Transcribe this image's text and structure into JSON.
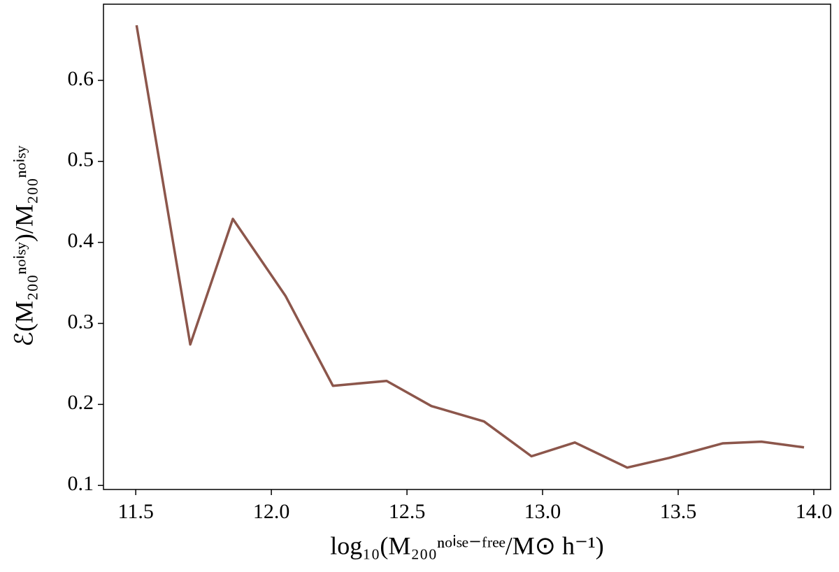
{
  "chart_data": {
    "type": "line",
    "xlabel": "log₁₀(M₂₀₀ⁿᵒⁱˢᵉ⁻ᶠʳᵉᵉ/M⊙ h⁻¹)",
    "ylabel": "ℰ(M₂₀₀ⁿᵒⁱˢʸ)/M₂₀₀ⁿᵒⁱˢʸ",
    "x": [
      11.503,
      11.701,
      11.858,
      12.052,
      12.227,
      12.425,
      12.59,
      12.784,
      12.959,
      13.119,
      13.312,
      13.467,
      13.665,
      13.807,
      13.964
    ],
    "values": [
      0.668,
      0.274,
      0.429,
      0.334,
      0.223,
      0.229,
      0.198,
      0.179,
      0.136,
      0.153,
      0.122,
      0.134,
      0.152,
      0.154,
      0.147
    ],
    "color": "#8c564b",
    "xlim": [
      11.381,
      14.062
    ],
    "ylim": [
      0.095,
      0.694
    ],
    "xticks": [
      11.5,
      {
        "value": 12,
        "label": "12.0"
      },
      12.5,
      {
        "value": 13,
        "label": "13.0"
      },
      13.5,
      {
        "value": 14,
        "label": "14.0"
      }
    ],
    "yticks": [
      0.1,
      0.2,
      0.3,
      0.4,
      0.5,
      0.6
    ],
    "grid": false
  }
}
